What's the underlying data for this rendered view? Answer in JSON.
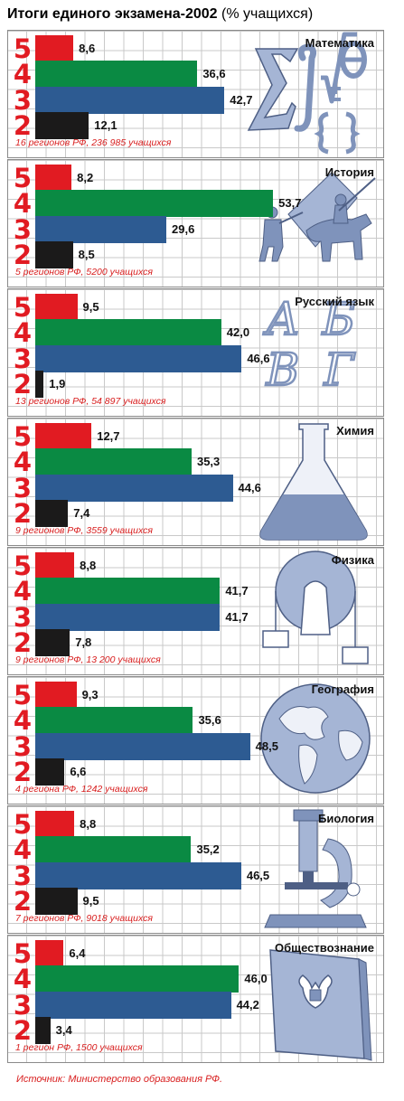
{
  "title": {
    "main": "Итоги единого экзамена-2002",
    "sub": " (% учащихся)"
  },
  "source": "Источник: Министерство образования РФ.",
  "colors": {
    "5": "#e11b22",
    "4": "#0a8a43",
    "3": "#2d5b92",
    "2": "#1b1a1a",
    "grade_text": "#e11b22",
    "note_text": "#d81e1e",
    "illustration": "#a5b5d5"
  },
  "chart_data": [
    {
      "type": "bar",
      "orientation": "horizontal",
      "title": "Математика",
      "categories": [
        "5",
        "4",
        "3",
        "2"
      ],
      "values": [
        8.6,
        36.6,
        42.7,
        12.1
      ],
      "note": "16 регионов РФ, 236 985 учащихся",
      "illustration": "math-symbols"
    },
    {
      "type": "bar",
      "orientation": "horizontal",
      "title": "История",
      "categories": [
        "5",
        "4",
        "3",
        "2"
      ],
      "values": [
        8.2,
        53.7,
        29.6,
        8.5
      ],
      "note": "5 регионов РФ, 5200 учащихся",
      "illustration": "knights-pyramid"
    },
    {
      "type": "bar",
      "orientation": "horizontal",
      "title": "Русский язык",
      "categories": [
        "5",
        "4",
        "3",
        "2"
      ],
      "values": [
        9.5,
        42.0,
        46.6,
        1.9
      ],
      "note": "13 регионов РФ, 54 897 учащихся",
      "illustration": "letters",
      "letters": [
        "А",
        "Б",
        "В",
        "Г"
      ]
    },
    {
      "type": "bar",
      "orientation": "horizontal",
      "title": "Химия",
      "categories": [
        "5",
        "4",
        "3",
        "2"
      ],
      "values": [
        12.7,
        35.3,
        44.6,
        7.4
      ],
      "note": "9 регионов РФ, 3559 учащихся",
      "illustration": "flask"
    },
    {
      "type": "bar",
      "orientation": "horizontal",
      "title": "Физика",
      "categories": [
        "5",
        "4",
        "3",
        "2"
      ],
      "values": [
        8.8,
        41.7,
        41.7,
        7.8
      ],
      "note": "9 регионов РФ, 13 200 учащихся",
      "illustration": "pulley"
    },
    {
      "type": "bar",
      "orientation": "horizontal",
      "title": "География",
      "categories": [
        "5",
        "4",
        "3",
        "2"
      ],
      "values": [
        9.3,
        35.6,
        48.5,
        6.6
      ],
      "note": "4 региона РФ, 1242 учащихся",
      "illustration": "globe"
    },
    {
      "type": "bar",
      "orientation": "horizontal",
      "title": "Биология",
      "categories": [
        "5",
        "4",
        "3",
        "2"
      ],
      "values": [
        8.8,
        35.2,
        46.5,
        9.5
      ],
      "note": "7 регионов РФ, 9018 учащихся",
      "illustration": "microscope"
    },
    {
      "type": "bar",
      "orientation": "horizontal",
      "title": "Обществознание",
      "categories": [
        "5",
        "4",
        "3",
        "2"
      ],
      "values": [
        6.4,
        46.0,
        44.2,
        3.4
      ],
      "note": "1 регион РФ, 1500 учащихся",
      "illustration": "book-with-emblem"
    }
  ]
}
